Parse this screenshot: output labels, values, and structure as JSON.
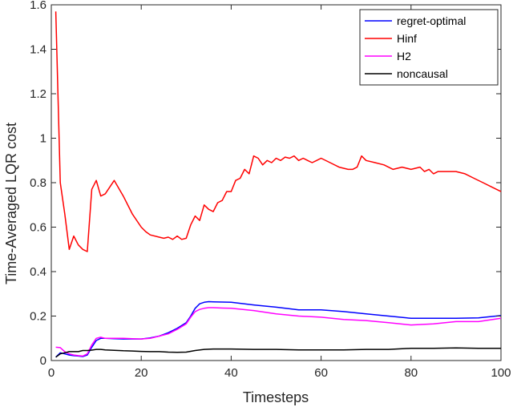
{
  "chart_data": {
    "type": "line",
    "xlabel": "Timesteps",
    "ylabel": "Time-Averaged LQR cost",
    "xlim": [
      0,
      100
    ],
    "ylim": [
      0,
      1.6
    ],
    "xticks": [
      "0",
      "20",
      "40",
      "60",
      "80",
      "100"
    ],
    "yticks": [
      "0",
      "0.2",
      "0.4",
      "0.6",
      "0.8",
      "1",
      "1.2",
      "1.4",
      "1.6"
    ],
    "legend_position": "top-right",
    "grid": false,
    "series": [
      {
        "name": "regret-optimal",
        "color": "#0000ff",
        "x": [
          1,
          2,
          3,
          4,
          5,
          6,
          7,
          8,
          9,
          10,
          11,
          12,
          14,
          16,
          18,
          20,
          22,
          24,
          26,
          28,
          30,
          31,
          32,
          33,
          34,
          35,
          36,
          38,
          40,
          45,
          50,
          55,
          60,
          65,
          70,
          75,
          80,
          85,
          90,
          95,
          100
        ],
        "y": [
          0.015,
          0.035,
          0.03,
          0.025,
          0.022,
          0.02,
          0.018,
          0.025,
          0.06,
          0.09,
          0.1,
          0.1,
          0.098,
          0.097,
          0.097,
          0.097,
          0.102,
          0.11,
          0.125,
          0.145,
          0.17,
          0.2,
          0.235,
          0.255,
          0.262,
          0.265,
          0.264,
          0.263,
          0.262,
          0.25,
          0.24,
          0.228,
          0.228,
          0.22,
          0.21,
          0.2,
          0.19,
          0.19,
          0.19,
          0.192,
          0.202
        ]
      },
      {
        "name": "Hinf",
        "color": "#ff0000",
        "x": [
          1,
          2,
          3,
          4,
          5,
          6,
          7,
          8,
          9,
          10,
          11,
          12,
          14,
          16,
          18,
          20,
          21,
          22,
          24,
          25,
          26,
          27,
          28,
          29,
          30,
          31,
          32,
          33,
          34,
          35,
          36,
          37,
          38,
          39,
          40,
          41,
          42,
          43,
          44,
          45,
          46,
          47,
          48,
          49,
          50,
          51,
          52,
          53,
          54,
          55,
          56,
          57,
          58,
          59,
          60,
          62,
          64,
          66,
          67,
          68,
          69,
          70,
          72,
          74,
          76,
          78,
          80,
          82,
          83,
          84,
          85,
          86,
          88,
          90,
          92,
          94,
          96,
          98,
          100
        ],
        "y": [
          1.57,
          0.8,
          0.66,
          0.5,
          0.56,
          0.52,
          0.5,
          0.49,
          0.77,
          0.81,
          0.74,
          0.75,
          0.81,
          0.74,
          0.66,
          0.6,
          0.58,
          0.565,
          0.555,
          0.55,
          0.555,
          0.545,
          0.56,
          0.545,
          0.55,
          0.61,
          0.65,
          0.63,
          0.7,
          0.68,
          0.67,
          0.71,
          0.72,
          0.76,
          0.76,
          0.81,
          0.82,
          0.86,
          0.84,
          0.92,
          0.91,
          0.88,
          0.9,
          0.89,
          0.91,
          0.9,
          0.915,
          0.91,
          0.92,
          0.9,
          0.91,
          0.9,
          0.89,
          0.9,
          0.91,
          0.89,
          0.87,
          0.86,
          0.86,
          0.87,
          0.92,
          0.9,
          0.89,
          0.88,
          0.86,
          0.87,
          0.86,
          0.87,
          0.85,
          0.86,
          0.84,
          0.85,
          0.85,
          0.85,
          0.84,
          0.82,
          0.8,
          0.78,
          0.76
        ]
      },
      {
        "name": "H2",
        "color": "#ff00ff",
        "x": [
          1,
          2,
          3,
          4,
          5,
          6,
          7,
          8,
          9,
          10,
          11,
          12,
          14,
          16,
          18,
          20,
          22,
          24,
          26,
          28,
          30,
          31,
          32,
          33,
          34,
          35,
          36,
          38,
          40,
          45,
          50,
          55,
          60,
          65,
          70,
          75,
          80,
          85,
          90,
          95,
          100
        ],
        "y": [
          0.06,
          0.058,
          0.04,
          0.03,
          0.025,
          0.022,
          0.02,
          0.03,
          0.07,
          0.1,
          0.105,
          0.1,
          0.1,
          0.1,
          0.098,
          0.097,
          0.1,
          0.11,
          0.12,
          0.14,
          0.165,
          0.195,
          0.22,
          0.23,
          0.235,
          0.238,
          0.238,
          0.236,
          0.235,
          0.225,
          0.21,
          0.2,
          0.195,
          0.185,
          0.18,
          0.17,
          0.16,
          0.165,
          0.175,
          0.175,
          0.19
        ]
      },
      {
        "name": "noncausal",
        "color": "#000000",
        "x": [
          1,
          2,
          3,
          4,
          5,
          6,
          7,
          8,
          9,
          10,
          11,
          12,
          14,
          16,
          18,
          20,
          22,
          24,
          26,
          28,
          30,
          32,
          34,
          36,
          38,
          40,
          45,
          50,
          55,
          60,
          65,
          70,
          75,
          80,
          85,
          90,
          95,
          100
        ],
        "y": [
          0.015,
          0.03,
          0.035,
          0.04,
          0.04,
          0.04,
          0.045,
          0.045,
          0.047,
          0.05,
          0.05,
          0.048,
          0.046,
          0.044,
          0.043,
          0.041,
          0.04,
          0.04,
          0.038,
          0.037,
          0.038,
          0.045,
          0.05,
          0.052,
          0.052,
          0.052,
          0.05,
          0.05,
          0.048,
          0.048,
          0.048,
          0.05,
          0.05,
          0.055,
          0.055,
          0.057,
          0.055,
          0.055
        ]
      }
    ]
  }
}
